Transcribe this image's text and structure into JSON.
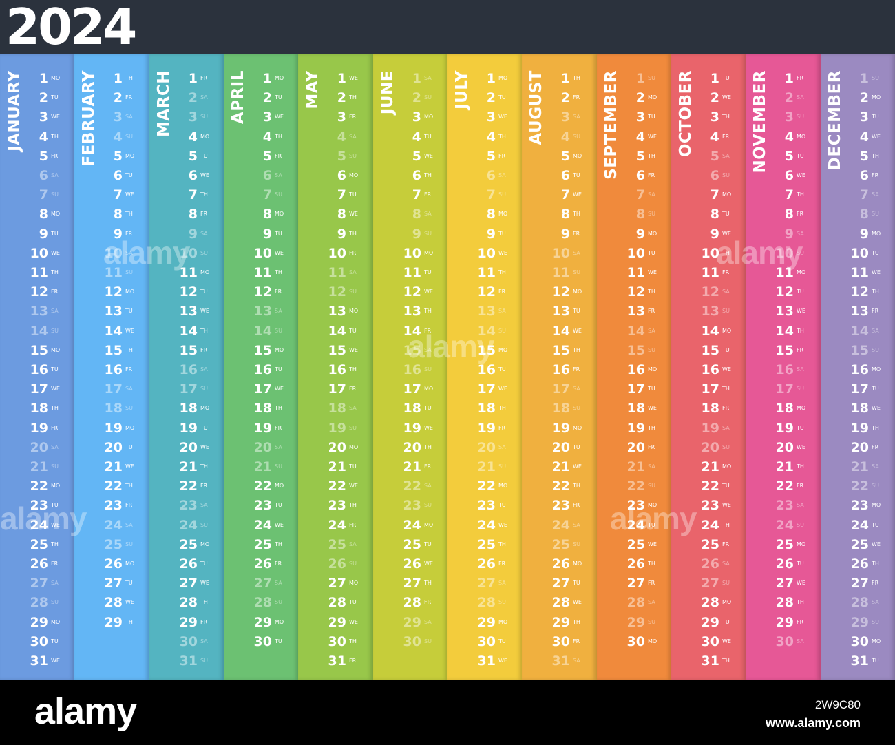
{
  "year": "2024",
  "months": [
    {
      "name": "JANUARY",
      "color": "#6c9be0",
      "start_index": 0,
      "days": 31
    },
    {
      "name": "FEBRUARY",
      "color": "#63b6f5",
      "start_index": 3,
      "days": 29
    },
    {
      "name": "MARCH",
      "color": "#54b4c1",
      "start_index": 4,
      "days": 31
    },
    {
      "name": "APRIL",
      "color": "#6cc172",
      "start_index": 0,
      "days": 30
    },
    {
      "name": "MAY",
      "color": "#98c74a",
      "start_index": 2,
      "days": 31
    },
    {
      "name": "JUNE",
      "color": "#c6cd3a",
      "start_index": 5,
      "days": 30
    },
    {
      "name": "JULY",
      "color": "#f3cc3c",
      "start_index": 0,
      "days": 31
    },
    {
      "name": "AUGUST",
      "color": "#f0b03f",
      "start_index": 3,
      "days": 31
    },
    {
      "name": "SEPTEMBER",
      "color": "#f08a3c",
      "start_index": 6,
      "days": 30
    },
    {
      "name": "OCTOBER",
      "color": "#e9646b",
      "start_index": 1,
      "days": 31
    },
    {
      "name": "NOVEMBER",
      "color": "#e65896",
      "start_index": 4,
      "days": 30
    },
    {
      "name": "DECEMBER",
      "color": "#9b8ac1",
      "start_index": 6,
      "days": 31
    }
  ],
  "weekday_labels": [
    "MO",
    "TU",
    "WE",
    "TH",
    "FR",
    "SA",
    "SU"
  ],
  "watermark_text": "alamy",
  "footer": {
    "brand": "alamy",
    "image_id": "2W9C80",
    "site": "www.alamy.com"
  }
}
